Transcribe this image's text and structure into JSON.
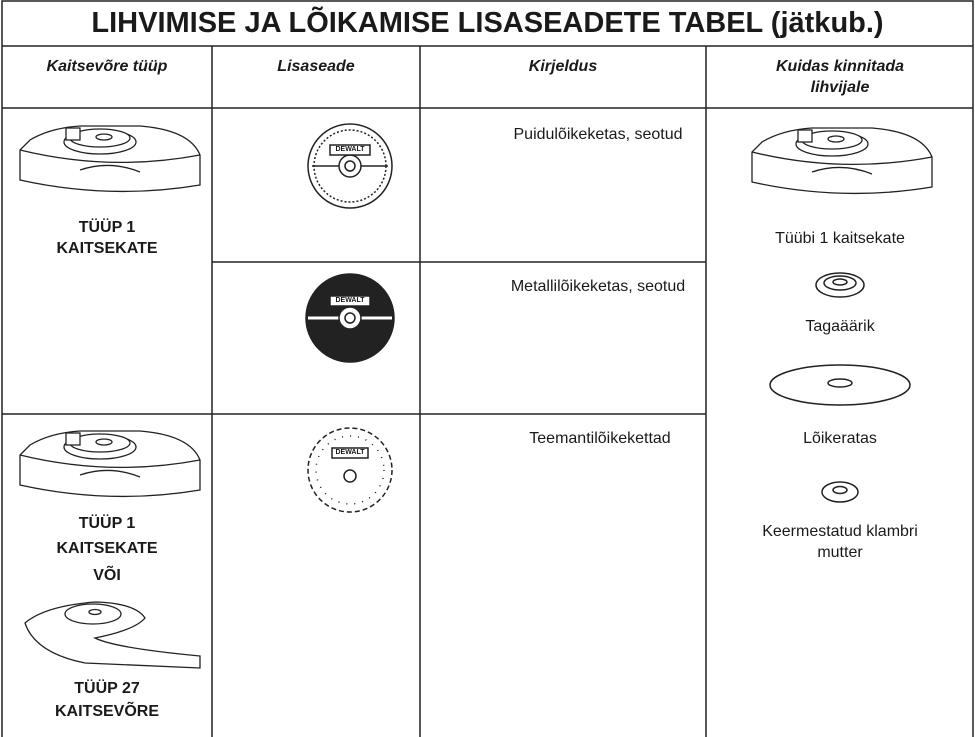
{
  "header": {
    "title": "LIHVIMISE JA LÕIKAMISE LISASEADETE TABEL (jätkub.)"
  },
  "table": {
    "columns": [
      "Kaitsevõre tüüp",
      "Lisaseade",
      "Kirjeldus",
      "Kuidas kinnitada lihvijale"
    ],
    "guards": [
      {
        "lines": [
          "TÜÜP 1",
          "KAITSEKATE"
        ]
      },
      {
        "lines": [
          "TÜÜP 1",
          "KAITSEKATE"
        ],
        "or": "VÕI",
        "alt_lines": [
          "TÜÜP 27",
          "KAITSEVÕRE"
        ]
      }
    ],
    "brand": "DEWALT",
    "descriptions": [
      "Puidulõikeketas, seotud",
      "Metallilõikeketas, seotud",
      "Teemantilõikekettad"
    ],
    "mounting": [
      "Tüübi 1 kaitsekate",
      "Tagaäärik",
      "Lõikeratas",
      "Keermestatud klambri mutter"
    ]
  }
}
